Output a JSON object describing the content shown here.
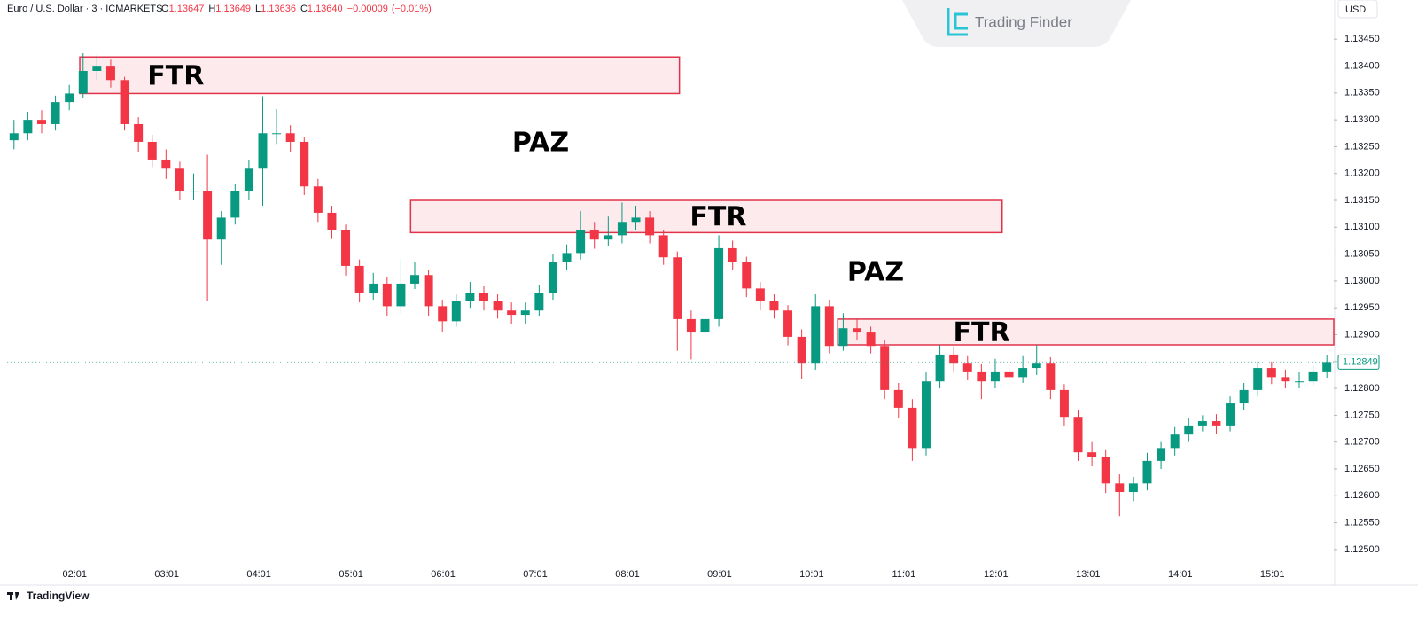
{
  "chart_data": {
    "type": "candlestick",
    "symbol": "Euro / U.S. Dollar · 3 · ICMARKETS",
    "ohlc": [
      {
        "letter": "O",
        "value": 1.13647
      },
      {
        "letter": "H",
        "value": 1.13649
      },
      {
        "letter": "L",
        "value": 1.13636
      },
      {
        "letter": "C",
        "value": 1.1364
      }
    ],
    "ohlc_labels": [
      "1.13647",
      "1.13649",
      "1.13636",
      "1.13640"
    ],
    "change": {
      "value": -9e-05,
      "label": "−0.00009"
    },
    "change_pct": {
      "value": -0.01,
      "label": "(−0.01%)"
    },
    "currency": "USD",
    "brand": "Trading Finder",
    "footer": "TradingView",
    "up_color": "#089981",
    "down_color": "#f23645",
    "zone_color": "#e0334a",
    "grid": false,
    "xlim": [
      0,
      96
    ],
    "ylim": [
      1.12442,
      1.13523
    ],
    "yticks": [
      {
        "value": 1.125,
        "label": "1.12500"
      },
      {
        "value": 1.1255,
        "label": "1.12550"
      },
      {
        "value": 1.126,
        "label": "1.12600"
      },
      {
        "value": 1.1265,
        "label": "1.12650"
      },
      {
        "value": 1.127,
        "label": "1.12700"
      },
      {
        "value": 1.1275,
        "label": "1.12750"
      },
      {
        "value": 1.128,
        "label": "1.12800"
      },
      {
        "value": 1.1285,
        "label": "1.12850"
      },
      {
        "value": 1.129,
        "label": "1.12900"
      },
      {
        "value": 1.1295,
        "label": "1.12950"
      },
      {
        "value": 1.13,
        "label": "1.13000"
      },
      {
        "value": 1.1305,
        "label": "1.13050"
      },
      {
        "value": 1.131,
        "label": "1.13100"
      },
      {
        "value": 1.1315,
        "label": "1.13150"
      },
      {
        "value": 1.132,
        "label": "1.13200"
      },
      {
        "value": 1.1325,
        "label": "1.13250"
      },
      {
        "value": 1.133,
        "label": "1.13300"
      },
      {
        "value": 1.1335,
        "label": "1.13350"
      },
      {
        "value": 1.134,
        "label": "1.13400"
      },
      {
        "value": 1.1345,
        "label": "1.13450"
      }
    ],
    "xticks": [
      {
        "value": 4.889,
        "label": "02:01"
      },
      {
        "value": 11.556,
        "label": "03:01"
      },
      {
        "value": 18.222,
        "label": "04:01"
      },
      {
        "value": 24.889,
        "label": "05:01"
      },
      {
        "value": 31.556,
        "label": "06:01"
      },
      {
        "value": 38.222,
        "label": "07:01"
      },
      {
        "value": 44.889,
        "label": "08:01"
      },
      {
        "value": 51.556,
        "label": "09:01"
      },
      {
        "value": 58.222,
        "label": "10:01"
      },
      {
        "value": 64.889,
        "label": "11:01"
      },
      {
        "value": 71.556,
        "label": "12:01"
      },
      {
        "value": 78.222,
        "label": "13:01"
      },
      {
        "value": 84.889,
        "label": "14:01"
      },
      {
        "value": 91.556,
        "label": "15:01"
      }
    ],
    "zones": [
      {
        "label": "FTR",
        "x": [
          5.26,
          48.65
        ],
        "y": [
          1.13349,
          1.13417
        ]
      },
      {
        "label": "FTR",
        "x": [
          29.2,
          72.0
        ],
        "y": [
          1.1309,
          1.1315
        ]
      },
      {
        "label": "FTR",
        "x": [
          60.1,
          96
        ],
        "y": [
          1.12881,
          1.12929
        ]
      }
    ],
    "annotations": [
      "PAZ",
      "PAZ"
    ],
    "candles": [
      [
        1.13262,
        1.133,
        1.13245,
        1.13275
      ],
      [
        1.13275,
        1.13315,
        1.13262,
        1.133
      ],
      [
        1.133,
        1.13318,
        1.13275,
        1.13292
      ],
      [
        1.13292,
        1.13345,
        1.1328,
        1.13333
      ],
      [
        1.13333,
        1.13365,
        1.13318,
        1.13349
      ],
      [
        1.13349,
        1.13424,
        1.1334,
        1.13391
      ],
      [
        1.13391,
        1.1342,
        1.13375,
        1.13399
      ],
      [
        1.13399,
        1.13412,
        1.1336,
        1.13374
      ],
      [
        1.13374,
        1.1338,
        1.1328,
        1.13292
      ],
      [
        1.13292,
        1.13305,
        1.1324,
        1.13259
      ],
      [
        1.13259,
        1.13272,
        1.13212,
        1.13226
      ],
      [
        1.13226,
        1.13245,
        1.1319,
        1.13209
      ],
      [
        1.13209,
        1.13222,
        1.1315,
        1.13168
      ],
      [
        1.13168,
        1.132,
        1.1315,
        1.13168
      ],
      [
        1.13168,
        1.13235,
        1.12962,
        1.13077
      ],
      [
        1.13077,
        1.1313,
        1.1303,
        1.13118
      ],
      [
        1.13118,
        1.1318,
        1.13105,
        1.13168
      ],
      [
        1.13168,
        1.13225,
        1.1315,
        1.13209
      ],
      [
        1.13209,
        1.13344,
        1.1314,
        1.13275
      ],
      [
        1.13275,
        1.1332,
        1.13255,
        1.13275
      ],
      [
        1.13275,
        1.1329,
        1.1324,
        1.13259
      ],
      [
        1.13259,
        1.13268,
        1.1316,
        1.13176
      ],
      [
        1.13176,
        1.1319,
        1.1311,
        1.13127
      ],
      [
        1.13127,
        1.1314,
        1.13078,
        1.13094
      ],
      [
        1.13094,
        1.13105,
        1.1301,
        1.13028
      ],
      [
        1.13028,
        1.1304,
        1.1296,
        1.12978
      ],
      [
        1.12978,
        1.13015,
        1.12965,
        1.12995
      ],
      [
        1.12995,
        1.13008,
        1.12935,
        1.12953
      ],
      [
        1.12953,
        1.1304,
        1.1294,
        1.12995
      ],
      [
        1.12995,
        1.13035,
        1.12985,
        1.13011
      ],
      [
        1.13011,
        1.1302,
        1.12935,
        1.12953
      ],
      [
        1.12953,
        1.12965,
        1.12905,
        1.12925
      ],
      [
        1.12925,
        1.12975,
        1.12915,
        1.12962
      ],
      [
        1.12962,
        1.12998,
        1.1295,
        1.12978
      ],
      [
        1.12978,
        1.1299,
        1.12945,
        1.12962
      ],
      [
        1.12962,
        1.12975,
        1.1293,
        1.12945
      ],
      [
        1.12945,
        1.1296,
        1.1292,
        1.12937
      ],
      [
        1.12937,
        1.1296,
        1.1292,
        1.12945
      ],
      [
        1.12945,
        1.12992,
        1.12935,
        1.12978
      ],
      [
        1.12978,
        1.1305,
        1.12965,
        1.13036
      ],
      [
        1.13036,
        1.13068,
        1.1302,
        1.13052
      ],
      [
        1.13052,
        1.1313,
        1.1304,
        1.13094
      ],
      [
        1.13094,
        1.1311,
        1.1306,
        1.13077
      ],
      [
        1.13077,
        1.1312,
        1.13065,
        1.13085
      ],
      [
        1.13085,
        1.13146,
        1.1307,
        1.1311
      ],
      [
        1.1311,
        1.1314,
        1.13095,
        1.13118
      ],
      [
        1.13118,
        1.1313,
        1.1307,
        1.13085
      ],
      [
        1.13085,
        1.13095,
        1.1303,
        1.13044
      ],
      [
        1.13044,
        1.13055,
        1.1287,
        1.12929
      ],
      [
        1.12929,
        1.12945,
        1.12854,
        1.12904
      ],
      [
        1.12904,
        1.12945,
        1.1289,
        1.12929
      ],
      [
        1.12929,
        1.13085,
        1.12915,
        1.13061
      ],
      [
        1.13061,
        1.13075,
        1.1302,
        1.13036
      ],
      [
        1.13036,
        1.13045,
        1.1297,
        1.12986
      ],
      [
        1.12986,
        1.12998,
        1.12945,
        1.12962
      ],
      [
        1.12962,
        1.12975,
        1.1293,
        1.12945
      ],
      [
        1.12945,
        1.12955,
        1.1288,
        1.12896
      ],
      [
        1.12896,
        1.1291,
        1.12818,
        1.12846
      ],
      [
        1.12846,
        1.12975,
        1.12835,
        1.12953
      ],
      [
        1.12953,
        1.12965,
        1.12865,
        1.12879
      ],
      [
        1.12879,
        1.1294,
        1.1287,
        1.12912
      ],
      [
        1.12912,
        1.1293,
        1.1289,
        1.12904
      ],
      [
        1.12904,
        1.12915,
        1.12865,
        1.12879
      ],
      [
        1.12879,
        1.1289,
        1.1278,
        1.12797
      ],
      [
        1.12797,
        1.1281,
        1.12745,
        1.12764
      ],
      [
        1.12764,
        1.1278,
        1.12665,
        1.12689
      ],
      [
        1.12689,
        1.1283,
        1.12675,
        1.12813
      ],
      [
        1.12813,
        1.1288,
        1.128,
        1.12863
      ],
      [
        1.12863,
        1.12878,
        1.1283,
        1.12846
      ],
      [
        1.12846,
        1.1286,
        1.12815,
        1.1283
      ],
      [
        1.1283,
        1.12845,
        1.1278,
        1.12813
      ],
      [
        1.12813,
        1.12855,
        1.128,
        1.1283
      ],
      [
        1.1283,
        1.12845,
        1.12805,
        1.12821
      ],
      [
        1.12821,
        1.1286,
        1.1281,
        1.12838
      ],
      [
        1.12838,
        1.1288,
        1.12825,
        1.12846
      ],
      [
        1.12846,
        1.12858,
        1.1278,
        1.12797
      ],
      [
        1.12797,
        1.12808,
        1.1273,
        1.12747
      ],
      [
        1.12747,
        1.1276,
        1.12665,
        1.12681
      ],
      [
        1.12681,
        1.127,
        1.12655,
        1.12673
      ],
      [
        1.12673,
        1.12685,
        1.12605,
        1.12623
      ],
      [
        1.12623,
        1.1264,
        1.12562,
        1.12607
      ],
      [
        1.12607,
        1.12635,
        1.1259,
        1.12623
      ],
      [
        1.12623,
        1.1268,
        1.1261,
        1.12665
      ],
      [
        1.12665,
        1.127,
        1.1265,
        1.12689
      ],
      [
        1.12689,
        1.12728,
        1.12675,
        1.12714
      ],
      [
        1.12714,
        1.12745,
        1.127,
        1.12731
      ],
      [
        1.12731,
        1.1275,
        1.1272,
        1.12739
      ],
      [
        1.12739,
        1.12752,
        1.12715,
        1.12731
      ],
      [
        1.12731,
        1.12785,
        1.1272,
        1.12772
      ],
      [
        1.12772,
        1.1281,
        1.1276,
        1.12797
      ],
      [
        1.12797,
        1.1285,
        1.12785,
        1.12838
      ],
      [
        1.12838,
        1.1285,
        1.12808,
        1.12821
      ],
      [
        1.12821,
        1.12835,
        1.128,
        1.12813
      ],
      [
        1.12813,
        1.1283,
        1.128,
        1.12813
      ],
      [
        1.12813,
        1.12842,
        1.12805,
        1.1283
      ],
      [
        1.1283,
        1.12862,
        1.1282,
        1.12849
      ]
    ]
  }
}
